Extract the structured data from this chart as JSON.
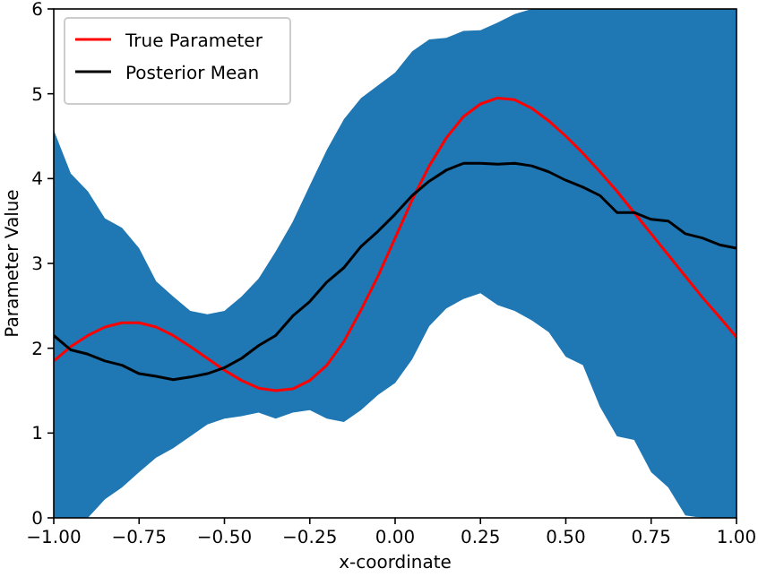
{
  "chart_data": {
    "type": "line",
    "xlabel": "x-coordinate",
    "ylabel": "Parameter Value",
    "x": [
      -1,
      -0.95,
      -0.9,
      -0.85,
      -0.8,
      -0.75,
      -0.7,
      -0.65,
      -0.6,
      -0.55,
      -0.5,
      -0.45,
      -0.4,
      -0.35,
      -0.3,
      -0.25,
      -0.2,
      -0.15,
      -0.1,
      -0.05,
      0,
      0.05,
      0.1,
      0.15,
      0.2,
      0.25,
      0.3,
      0.35,
      0.4,
      0.45,
      0.5,
      0.55,
      0.6,
      0.65,
      0.7,
      0.75,
      0.8,
      0.85,
      0.9,
      0.95,
      1
    ],
    "series": [
      {
        "name": "True Parameter",
        "color": "#ff0000",
        "values": [
          1.85,
          2.02,
          2.15,
          2.25,
          2.3,
          2.3,
          2.25,
          2.15,
          2.02,
          1.88,
          1.74,
          1.62,
          1.53,
          1.5,
          1.52,
          1.62,
          1.8,
          2.08,
          2.45,
          2.85,
          3.3,
          3.75,
          4.15,
          4.48,
          4.73,
          4.88,
          4.95,
          4.93,
          4.83,
          4.68,
          4.5,
          4.3,
          4.08,
          3.85,
          3.6,
          3.35,
          3.1,
          2.85,
          2.6,
          2.37,
          2.13
        ]
      },
      {
        "name": "Posterior Mean",
        "color": "#000000",
        "values": [
          2.15,
          1.98,
          1.93,
          1.85,
          1.8,
          1.7,
          1.67,
          1.63,
          1.66,
          1.7,
          1.77,
          1.88,
          2.03,
          2.15,
          2.38,
          2.55,
          2.78,
          2.95,
          3.2,
          3.38,
          3.58,
          3.8,
          3.97,
          4.1,
          4.18,
          4.18,
          4.17,
          4.18,
          4.15,
          4.08,
          3.98,
          3.9,
          3.8,
          3.6,
          3.6,
          3.52,
          3.5,
          3.35,
          3.3,
          3.22,
          3.18
        ],
        "lower": [
          0,
          0,
          0,
          0.22,
          0.36,
          0.54,
          0.71,
          0.82,
          0.96,
          1.1,
          1.17,
          1.2,
          1.24,
          1.17,
          1.24,
          1.27,
          1.17,
          1.13,
          1.27,
          1.45,
          1.59,
          1.87,
          2.26,
          2.47,
          2.58,
          2.65,
          2.51,
          2.44,
          2.33,
          2.19,
          1.9,
          1.8,
          1.31,
          0.96,
          0.92,
          0.54,
          0.36,
          0.03,
          0,
          0,
          0
        ],
        "upper": [
          4.57,
          4.06,
          3.85,
          3.53,
          3.42,
          3.18,
          2.79,
          2.61,
          2.44,
          2.4,
          2.44,
          2.61,
          2.82,
          3.14,
          3.49,
          3.92,
          4.34,
          4.7,
          4.95,
          5.1,
          5.25,
          5.5,
          5.64,
          5.66,
          5.74,
          5.75,
          5.84,
          5.94,
          6,
          6,
          6,
          6,
          6,
          6,
          6,
          6,
          6,
          6,
          6,
          6,
          6
        ]
      }
    ],
    "xlim": [
      -1,
      1
    ],
    "xticks": [
      {
        "value": -1,
        "label": "−1.00"
      },
      {
        "value": -0.75,
        "label": "−0.75"
      },
      {
        "value": -0.5,
        "label": "−0.50"
      },
      {
        "value": -0.25,
        "label": "−0.25"
      },
      {
        "value": 0,
        "label": "0.00"
      },
      {
        "value": 0.25,
        "label": "0.25"
      },
      {
        "value": 0.5,
        "label": "0.50"
      },
      {
        "value": 0.75,
        "label": "0.75"
      },
      {
        "value": 1,
        "label": "1.00"
      }
    ],
    "ylim": [
      0,
      6
    ],
    "yticks": [
      0,
      1,
      2,
      3,
      4,
      5,
      6
    ],
    "legend": "top left",
    "grid": false
  }
}
